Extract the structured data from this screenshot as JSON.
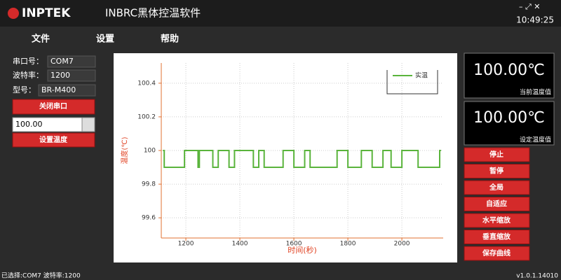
{
  "header": {
    "logo": "INPTEK",
    "title": "INBRC黑体控温软件",
    "time": "10:49:25"
  },
  "menu": [
    "文件",
    "设置",
    "帮助"
  ],
  "settings": {
    "rows": [
      {
        "label": "串口号：",
        "value": "COM7"
      },
      {
        "label": "波特率：",
        "value": "1200"
      },
      {
        "label": "型号：",
        "value": "BR-M400"
      }
    ],
    "button_close": "关闭串口",
    "temperature_input": "100.00",
    "button_set": "设置温度"
  },
  "displays": [
    {
      "value": "100.00℃",
      "label": "当前温度值"
    },
    {
      "value": "100.00℃",
      "label": "设定温度值"
    }
  ],
  "buttons": [
    "停止",
    "暂停",
    "全局",
    "自适应",
    "水平缩放",
    "垂直缩放",
    "保存曲线"
  ],
  "status": {
    "left": "已选择:COM7 波特率:1200",
    "version": "v1.0.1.14010"
  },
  "chart_data": {
    "type": "line",
    "x_label": "时间(秒)",
    "y_label": "温度(℃)",
    "x": [
      1115,
      1120,
      1120,
      1195,
      1195,
      1245,
      1245,
      1250,
      1250,
      1300,
      1300,
      1320,
      1320,
      1360,
      1360,
      1380,
      1380,
      1450,
      1450,
      1470,
      1470,
      1490,
      1490,
      1560,
      1560,
      1600,
      1600,
      1640,
      1640,
      1660,
      1660,
      1760,
      1760,
      1800,
      1800,
      1850,
      1850,
      1890,
      1890,
      1930,
      1930,
      1960,
      1960,
      2000,
      2000,
      2060,
      2060,
      2140,
      2140,
      2145
    ],
    "series": [
      {
        "name": "实温",
        "color": "#5ab43c",
        "values": [
          100,
          100,
          99.9,
          99.9,
          100,
          100,
          99.9,
          99.9,
          100,
          100,
          99.9,
          99.9,
          100,
          100,
          99.9,
          99.9,
          100,
          100,
          99.9,
          99.9,
          100,
          100,
          99.9,
          99.9,
          100,
          100,
          99.9,
          99.9,
          100,
          100,
          99.9,
          99.9,
          100,
          100,
          99.9,
          99.9,
          100,
          100,
          99.9,
          99.9,
          100,
          100,
          99.9,
          99.9,
          100,
          100,
          99.9,
          99.9,
          100,
          100
        ]
      }
    ],
    "xlim": [
      1109,
      2153
    ],
    "ylim": [
      99.48,
      100.52
    ],
    "xticks": [
      1200,
      1400,
      1600,
      1800,
      2000
    ],
    "yticks": [
      99.6,
      99.8,
      100,
      100.2,
      100.4
    ],
    "grid": true,
    "legend": "top-right"
  }
}
